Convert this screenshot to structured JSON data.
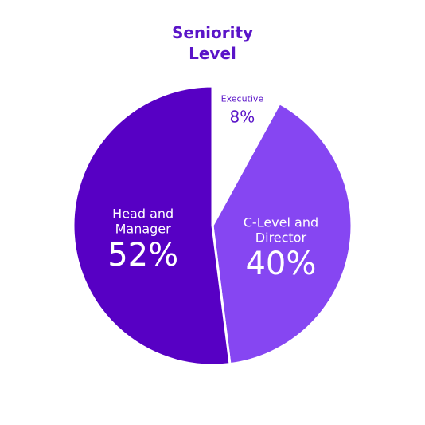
{
  "chart_data": {
    "type": "pie",
    "title": "Seniority Level",
    "categories": [
      "Executive",
      "C-Level and Director",
      "Head and Manager"
    ],
    "values": [
      8,
      40,
      52
    ],
    "value_labels": [
      "8%",
      "40%",
      "52%"
    ],
    "colors": [
      "#ffffff",
      "#8646f2",
      "#5700c4"
    ]
  }
}
